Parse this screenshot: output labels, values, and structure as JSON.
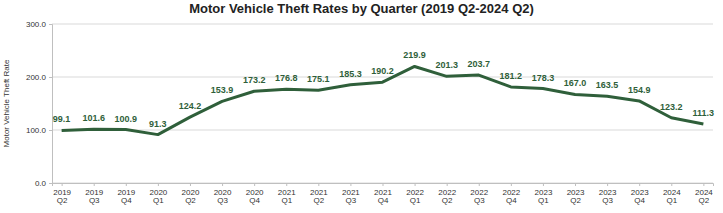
{
  "chart_data": {
    "type": "line",
    "title": "Motor Vehicle Theft Rates by Quarter (2019 Q2-2024 Q2)",
    "y_label": "Motor Vehicle Theft Rate",
    "categories": [
      "2019 Q2",
      "2019 Q3",
      "2019 Q4",
      "2020 Q1",
      "2020 Q2",
      "2020 Q3",
      "2020 Q4",
      "2021 Q1",
      "2021 Q2",
      "2021 Q3",
      "2021 Q4",
      "2022 Q1",
      "2022 Q2",
      "2022 Q3",
      "2022 Q4",
      "2023 Q1",
      "2023 Q2",
      "2023 Q3",
      "2023 Q4",
      "2024 Q1",
      "2024 Q2"
    ],
    "values": [
      99.1,
      101.6,
      100.9,
      91.3,
      124.2,
      153.9,
      173.2,
      176.8,
      175.1,
      185.3,
      190.2,
      219.9,
      201.3,
      203.7,
      181.2,
      178.3,
      167.0,
      163.5,
      154.9,
      123.2,
      111.3
    ],
    "value_labels": [
      "99.1",
      "101.6",
      "100.9",
      "91.3",
      "124.2",
      "153.9",
      "173.2",
      "176.8",
      "175.1",
      "185.3",
      "190.2",
      "219.9",
      "201.3",
      "203.7",
      "181.2",
      "178.3",
      "167.0",
      "163.5",
      "154.9",
      "123.2",
      "111.3"
    ],
    "color": "#2f5f3a",
    "ylim": [
      0,
      300
    ],
    "yticks": [
      {
        "value": 0,
        "label": "0.0"
      },
      {
        "value": 100,
        "label": "100.0"
      },
      {
        "value": 200,
        "label": "200.0"
      },
      {
        "value": 300,
        "label": "300.0"
      }
    ],
    "grid": true,
    "data_labels": true
  }
}
